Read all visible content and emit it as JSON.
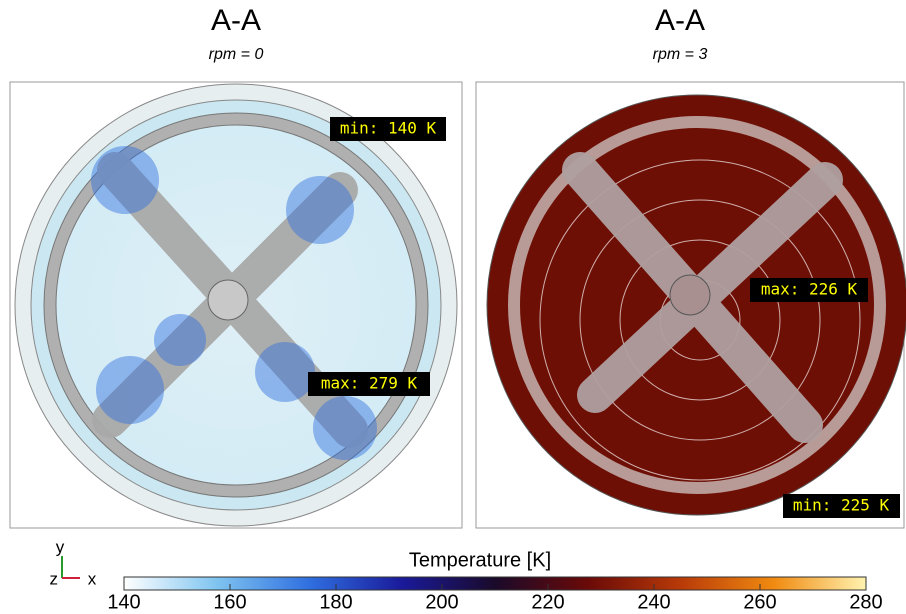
{
  "panels": [
    {
      "title": "A-A",
      "subtitle": "rpm = 0",
      "min_label": "min: 140 K",
      "max_label": "max: 279 K"
    },
    {
      "title": "A-A",
      "subtitle": "rpm = 3",
      "min_label": "min: 225 K",
      "max_label": "max: 226 K"
    }
  ],
  "axes_triad": {
    "y": "y",
    "z": "z",
    "x": "x"
  },
  "colorbar": {
    "label": "Temperature [K]",
    "range": [
      140,
      280
    ],
    "ticks": [
      140,
      160,
      180,
      200,
      220,
      240,
      260,
      280
    ],
    "colors": [
      "#ffffff",
      "#7fc4f0",
      "#2f6fe0",
      "#1a1a9a",
      "#1a0a2a",
      "#6a0a08",
      "#b83a08",
      "#f08a10",
      "#fff3b0"
    ]
  }
}
